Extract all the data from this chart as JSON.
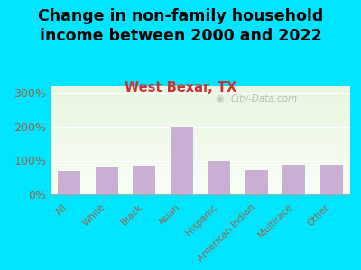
{
  "title": "Change in non-family household\nincome between 2000 and 2022",
  "subtitle": "West Bexar, TX",
  "categories": [
    "All",
    "White",
    "Black",
    "Asian",
    "Hispanic",
    "American Indian",
    "Multirace",
    "Other"
  ],
  "values": [
    70,
    80,
    85,
    200,
    98,
    72,
    88,
    87
  ],
  "bar_color": "#c9afd4",
  "background_outer": "#00e5ff",
  "plot_bg_top": "#e8f5e0",
  "plot_bg_bottom": "#f8fdf5",
  "title_fontsize": 12.5,
  "subtitle_fontsize": 10.5,
  "subtitle_color": "#cc3333",
  "title_color": "#000000",
  "tick_label_color": "#996644",
  "watermark": "City-Data.com",
  "ylim": [
    0,
    320
  ],
  "yticks": [
    0,
    100,
    200,
    300
  ]
}
